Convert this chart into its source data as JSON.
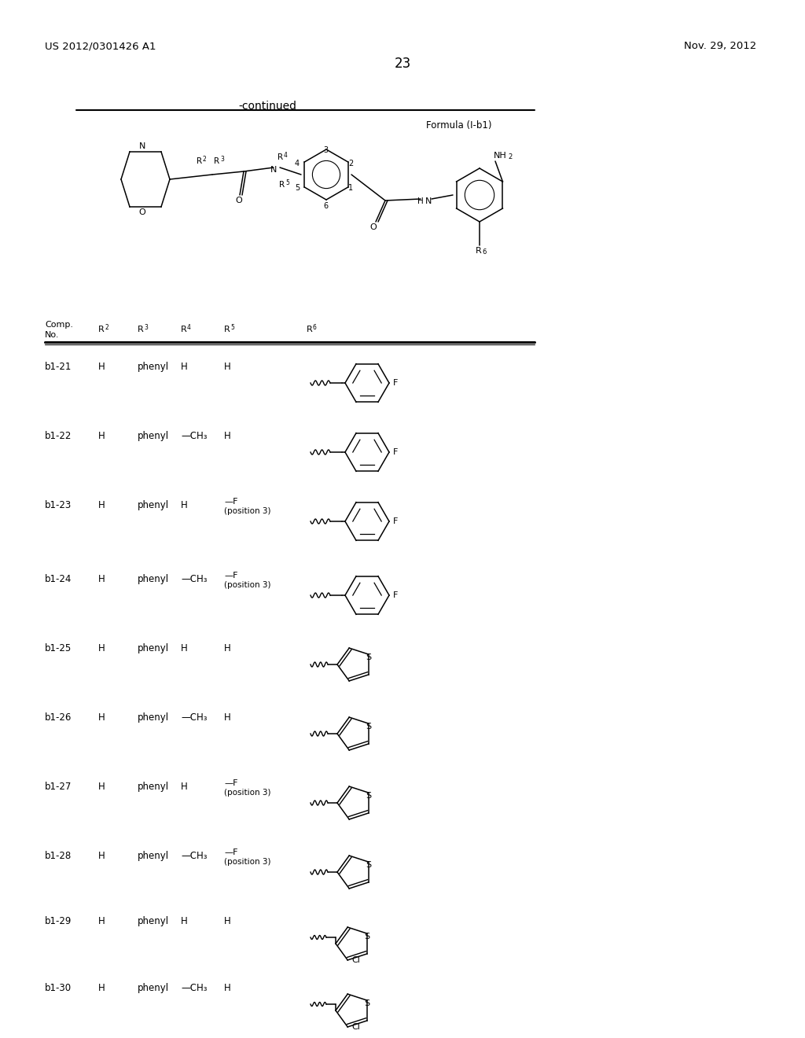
{
  "page_header_left": "US 2012/0301426 A1",
  "page_header_right": "Nov. 29, 2012",
  "page_number": "23",
  "section_label": "-continued",
  "formula_label": "Formula (I-b1)",
  "rows": [
    {
      "id": "b1-21",
      "R2": "H",
      "R3": "phenyl",
      "R4": "H",
      "R5": "H",
      "R6_type": "4-F-phenyl"
    },
    {
      "id": "b1-22",
      "R2": "H",
      "R3": "phenyl",
      "R4": "—CH₃",
      "R5": "H",
      "R6_type": "4-F-phenyl"
    },
    {
      "id": "b1-23",
      "R2": "H",
      "R3": "phenyl",
      "R4": "H",
      "R5": "—F\n(position 3)",
      "R6_type": "4-F-phenyl"
    },
    {
      "id": "b1-24",
      "R2": "H",
      "R3": "phenyl",
      "R4": "—CH₃",
      "R5": "—F\n(position 3)",
      "R6_type": "4-F-phenyl"
    },
    {
      "id": "b1-25",
      "R2": "H",
      "R3": "phenyl",
      "R4": "H",
      "R5": "H",
      "R6_type": "thiophen-2-yl"
    },
    {
      "id": "b1-26",
      "R2": "H",
      "R3": "phenyl",
      "R4": "—CH₃",
      "R5": "H",
      "R6_type": "thiophen-2-yl"
    },
    {
      "id": "b1-27",
      "R2": "H",
      "R3": "phenyl",
      "R4": "H",
      "R5": "—F\n(position 3)",
      "R6_type": "thiophen-2-yl"
    },
    {
      "id": "b1-28",
      "R2": "H",
      "R3": "phenyl",
      "R4": "—CH₃",
      "R5": "—F\n(position 3)",
      "R6_type": "thiophen-2-yl"
    },
    {
      "id": "b1-29",
      "R2": "H",
      "R3": "phenyl",
      "R4": "H",
      "R5": "H",
      "R6_type": "5-Cl-thiophen"
    },
    {
      "id": "b1-30",
      "R2": "H",
      "R3": "phenyl",
      "R4": "—CH₃",
      "R5": "H",
      "R6_type": "5-Cl-thiophen"
    }
  ],
  "bg_color": "#ffffff"
}
